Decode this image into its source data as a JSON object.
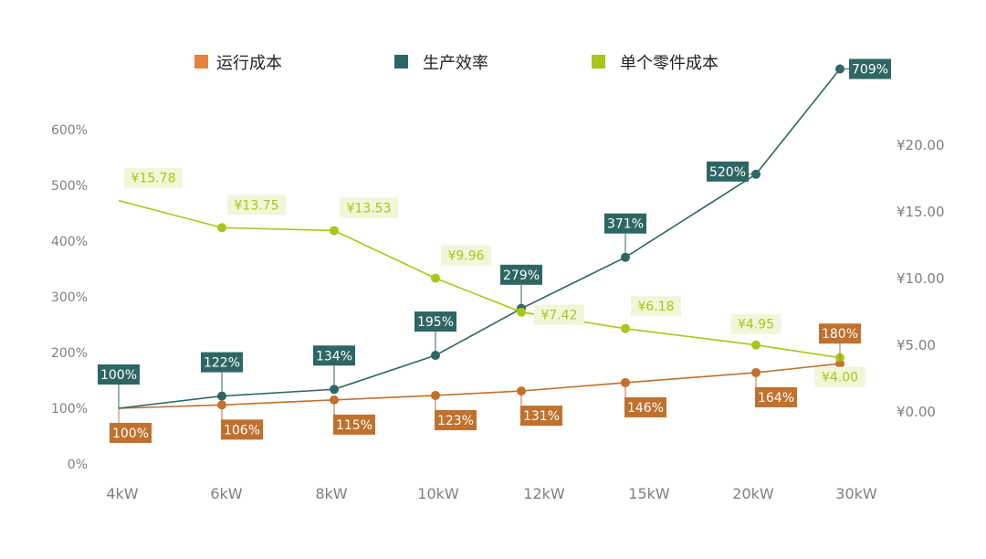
{
  "chart_data": {
    "type": "line",
    "categories": [
      "4kW",
      "6kW",
      "8kW",
      "10kW",
      "12kW",
      "15kW",
      "20kW",
      "30kW"
    ],
    "left_axis": {
      "ticks": [
        "0%",
        "100%",
        "200%",
        "300%",
        "400%",
        "500%",
        "600%"
      ],
      "range": [
        0,
        600
      ]
    },
    "right_axis": {
      "ticks": [
        "¥0.00",
        "¥5.00",
        "¥10.00",
        "¥15.00",
        "¥20.00"
      ],
      "range": [
        0,
        20
      ]
    },
    "grid": false,
    "legend_position": "top",
    "series": [
      {
        "name": "运行成本",
        "axis": "left",
        "color": "#c0712d",
        "legend_color": "#e8813a",
        "values": [
          100,
          106,
          115,
          123,
          131,
          146,
          164,
          180
        ],
        "labels": [
          "100%",
          "106%",
          "115%",
          "123%",
          "131%",
          "146%",
          "164%",
          "180%"
        ]
      },
      {
        "name": "生产效率",
        "axis": "left",
        "color": "#2e6664",
        "legend_color": "#2e6664",
        "values": [
          100,
          122,
          134,
          195,
          279,
          371,
          520,
          709
        ],
        "labels": [
          "100%",
          "122%",
          "134%",
          "195%",
          "279%",
          "371%",
          "520%",
          "709%"
        ]
      },
      {
        "name": "单个零件成本",
        "axis": "right",
        "color": "#a6c81a",
        "legend_color": "#a6c81a",
        "values": [
          15.78,
          13.75,
          13.53,
          9.96,
          7.42,
          6.18,
          4.95,
          4.0
        ],
        "labels": [
          "¥15.78",
          "¥13.75",
          "¥13.53",
          "¥9.96",
          "¥7.42",
          "¥6.18",
          "¥4.95",
          "¥4.00"
        ]
      }
    ]
  }
}
